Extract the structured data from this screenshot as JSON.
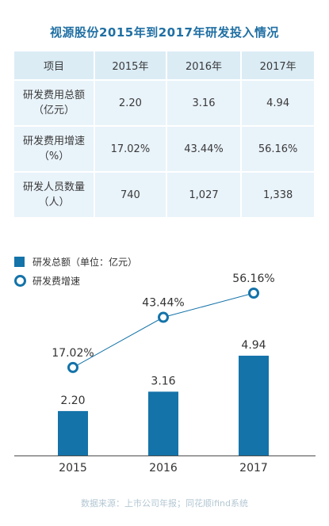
{
  "title": "视源股份2015年到2017年研发投入情况",
  "table": {
    "headers": [
      "项目",
      "2015年",
      "2016年",
      "2017年"
    ],
    "rows": [
      {
        "label_line1": "研发费用总额",
        "label_line2": "（亿元）",
        "values": [
          "2.20",
          "3.16",
          "4.94"
        ]
      },
      {
        "label_line1": "研发费用增速",
        "label_line2": "（%）",
        "values": [
          "17.02%",
          "43.44%",
          "56.16%"
        ]
      },
      {
        "label_line1": "研发人员数量",
        "label_line2": "（人）",
        "values": [
          "740",
          "1,027",
          "1,338"
        ]
      }
    ]
  },
  "chart_data": {
    "type": "bar",
    "categories": [
      "2015",
      "2016",
      "2017"
    ],
    "series": [
      {
        "name": "研发总额（单位：亿元）",
        "type": "bar",
        "values": [
          2.2,
          3.16,
          4.94
        ],
        "labels": [
          "2.20",
          "3.16",
          "4.94"
        ]
      },
      {
        "name": "研发费增速",
        "type": "line",
        "values": [
          17.02,
          43.44,
          56.16
        ],
        "labels": [
          "17.02%",
          "43.44%",
          "56.16%"
        ]
      }
    ],
    "legend": [
      "研发总额（单位：亿元）",
      "研发费增速"
    ],
    "legend_position": "top-left",
    "colors": {
      "bar": "#1473a9",
      "line": "#1473a9"
    }
  },
  "source": "数据来源：上市公司年报；同花顺ifind系统"
}
